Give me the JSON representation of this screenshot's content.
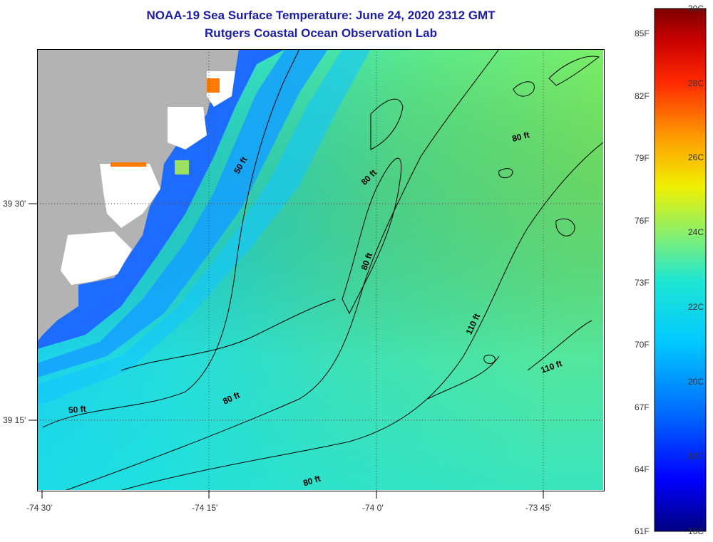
{
  "title": "NOAA-19 Sea Surface Temperature:  June 24, 2020 2312 GMT",
  "subtitle": "Rutgers Coastal Ocean Observation Lab",
  "map": {
    "lat_labels": [
      {
        "text": "39 30'"
      },
      {
        "text": "39 15'"
      }
    ],
    "lon_labels": [
      {
        "text": "-74 30'"
      },
      {
        "text": "-74 15'"
      },
      {
        "text": "-74 0'"
      },
      {
        "text": "-73 45'"
      }
    ],
    "contour_labels": [
      {
        "text": "50 ft"
      },
      {
        "text": "50 ft"
      },
      {
        "text": "80 ft"
      },
      {
        "text": "80 ft"
      },
      {
        "text": "80 ft"
      },
      {
        "text": "80 ft"
      },
      {
        "text": "80 ft"
      },
      {
        "text": "110 ft"
      },
      {
        "text": "110 ft"
      }
    ]
  },
  "colorbar": {
    "fahrenheit": [
      "85F",
      "82F",
      "79F",
      "76F",
      "73F",
      "70F",
      "67F",
      "64F",
      "61F"
    ],
    "celsius": [
      "30C",
      "28C",
      "26C",
      "24C",
      "22C",
      "20C",
      "18C",
      "16C"
    ],
    "colors": [
      "#000080",
      "#0000ff",
      "#0066ff",
      "#00c8ff",
      "#1ee6d2",
      "#96f060",
      "#f0f000",
      "#ff9600",
      "#ff2800",
      "#c80000",
      "#800000"
    ]
  },
  "land_color": "#b3b3b3",
  "water_colors": {
    "inshore": "#1a55ff",
    "mid": "#0fd7f0",
    "offshore": "#5be88c"
  }
}
